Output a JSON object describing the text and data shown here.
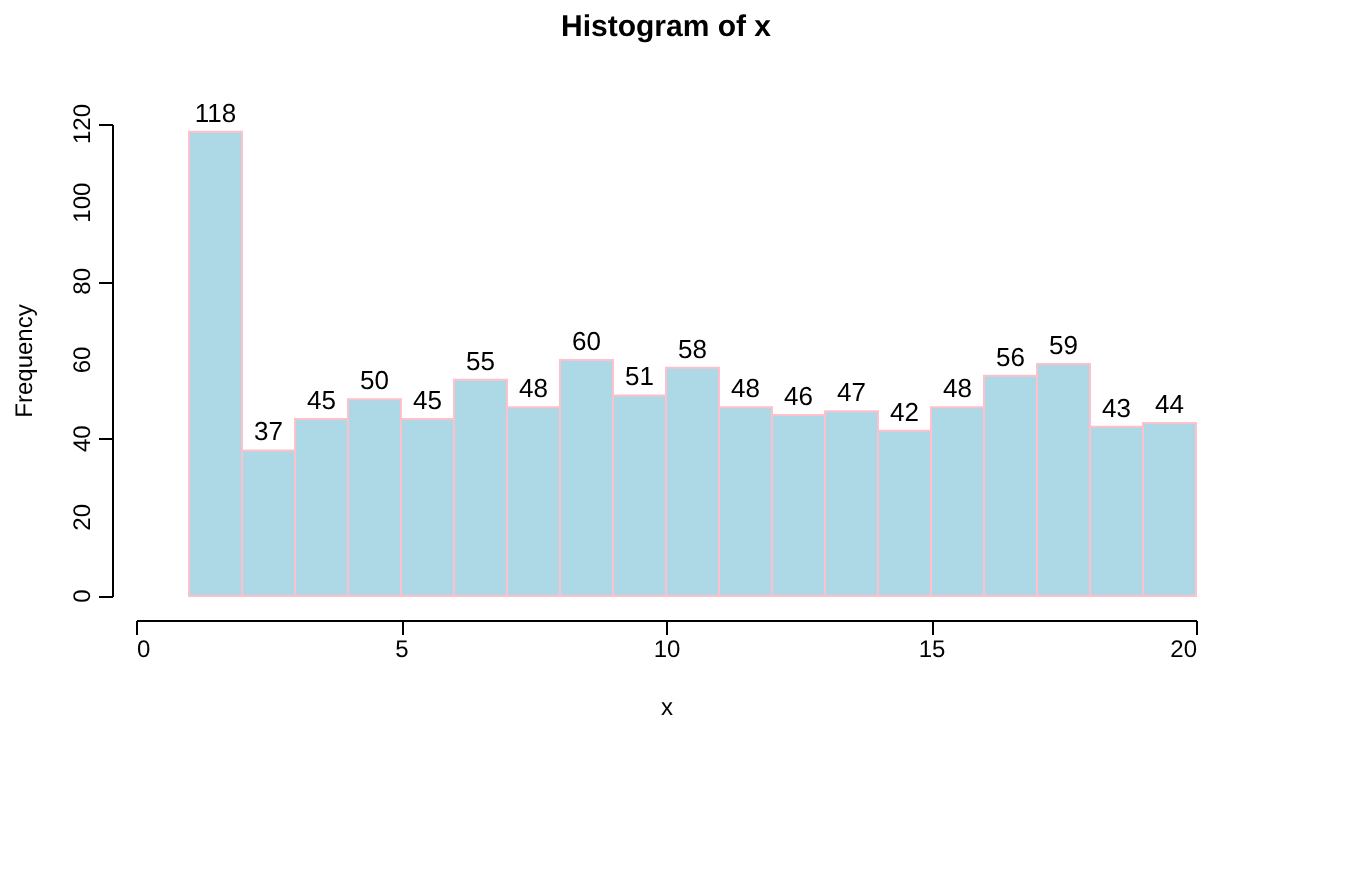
{
  "chart_data": {
    "type": "histogram",
    "title": "Histogram of x",
    "xlabel": "x",
    "ylabel": "Frequency",
    "bins": [
      1,
      2,
      3,
      4,
      5,
      6,
      7,
      8,
      9,
      10,
      11,
      12,
      13,
      14,
      15,
      16,
      17,
      18,
      19,
      20
    ],
    "values": [
      118,
      37,
      45,
      50,
      45,
      55,
      48,
      60,
      51,
      58,
      48,
      46,
      47,
      42,
      48,
      56,
      59,
      43,
      44
    ],
    "color": "#add8e6",
    "xlim": [
      0,
      20
    ],
    "xticks": [
      0,
      5,
      10,
      15,
      20
    ],
    "ylim": [
      0,
      120
    ],
    "yticks": [
      0,
      20,
      40,
      60,
      80,
      100,
      120
    ],
    "data_labels": true,
    "grid": false
  }
}
